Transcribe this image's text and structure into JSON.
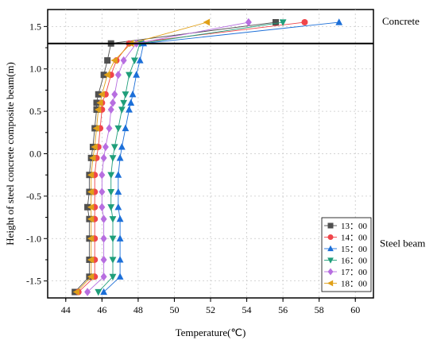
{
  "chart_data": {
    "type": "line",
    "xlabel": "Temperature(℃)",
    "ylabel": "Height of steel concrete composite beam(m)",
    "xlim": [
      43,
      61
    ],
    "ylim": [
      -1.7,
      1.7
    ],
    "xticks": [
      44,
      46,
      48,
      50,
      52,
      54,
      56,
      58,
      60
    ],
    "yticks": [
      -1.5,
      -1.0,
      -0.5,
      0.0,
      0.5,
      1.0,
      1.5
    ],
    "xtick_labels": [
      "44",
      "46",
      "48",
      "50",
      "52",
      "54",
      "56",
      "58",
      "60"
    ],
    "ytick_labels": [
      "-1.5",
      "-1.0",
      "-0.5",
      "0.0",
      "0.5",
      "1.0",
      "1.5"
    ],
    "grid": "dotted",
    "interface_height": 1.3,
    "region_labels": [
      "Concrete",
      "Steel beam"
    ],
    "legend_position": "lower-right",
    "y": [
      -1.63,
      -1.45,
      -1.25,
      -1.0,
      -0.77,
      -0.63,
      -0.45,
      -0.25,
      -0.05,
      0.08,
      0.3,
      0.52,
      0.6,
      0.7,
      0.93,
      1.1,
      1.3,
      1.55
    ],
    "series": [
      {
        "name": "13：00",
        "color": "#505050",
        "marker": "square",
        "values": [
          44.5,
          45.3,
          45.3,
          45.3,
          45.3,
          45.2,
          45.3,
          45.3,
          45.4,
          45.5,
          45.6,
          45.7,
          45.7,
          45.8,
          46.1,
          46.3,
          46.5,
          55.6
        ]
      },
      {
        "name": "14：00",
        "color": "#f0454a",
        "marker": "circle",
        "values": [
          44.7,
          45.6,
          45.6,
          45.6,
          45.6,
          45.6,
          45.6,
          45.6,
          45.7,
          45.8,
          45.9,
          46.0,
          46.0,
          46.2,
          46.5,
          46.8,
          47.5,
          57.2
        ]
      },
      {
        "name": "15：00",
        "color": "#1c6fd8",
        "marker": "triangle-up",
        "values": [
          46.1,
          47.0,
          47.0,
          47.0,
          47.0,
          46.9,
          46.9,
          46.9,
          47.0,
          47.1,
          47.3,
          47.5,
          47.6,
          47.7,
          47.9,
          48.1,
          48.3,
          59.1
        ]
      },
      {
        "name": "16：00",
        "color": "#1f9e7a",
        "marker": "triangle-down",
        "values": [
          45.8,
          46.6,
          46.6,
          46.6,
          46.6,
          46.5,
          46.5,
          46.5,
          46.6,
          46.7,
          46.9,
          47.1,
          47.2,
          47.3,
          47.5,
          47.8,
          48.1,
          56.0
        ]
      },
      {
        "name": "17：00",
        "color": "#b76ee0",
        "marker": "diamond",
        "values": [
          45.2,
          46.1,
          46.1,
          46.1,
          46.1,
          46.0,
          46.0,
          46.0,
          46.1,
          46.2,
          46.4,
          46.5,
          46.6,
          46.7,
          46.9,
          47.2,
          47.9,
          54.1
        ]
      },
      {
        "name": "18：00",
        "color": "#e0a018",
        "marker": "triangle-left",
        "values": [
          44.6,
          45.4,
          45.4,
          45.4,
          45.4,
          45.4,
          45.4,
          45.4,
          45.5,
          45.6,
          45.7,
          45.8,
          45.9,
          46.0,
          46.3,
          46.7,
          47.6,
          51.8
        ]
      }
    ]
  }
}
